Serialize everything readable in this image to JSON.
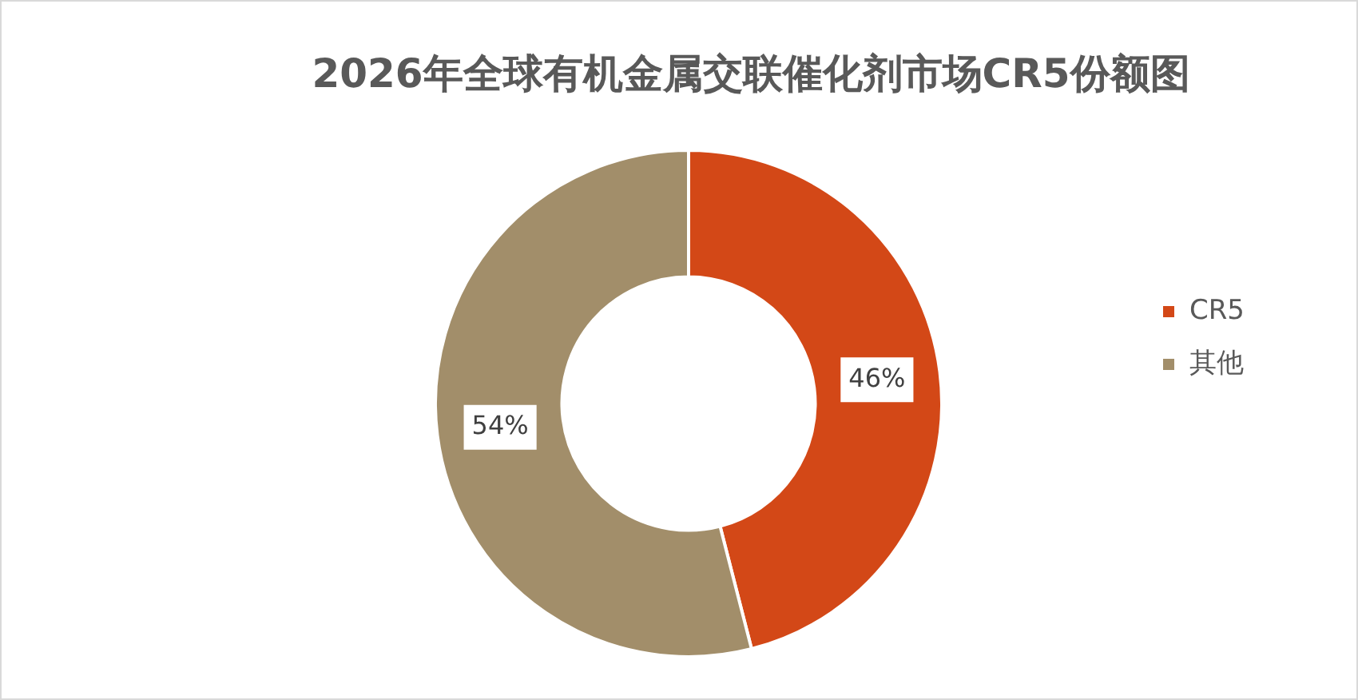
{
  "chart_data": {
    "type": "donut",
    "title": "2026年全球有机金属交联催化剂市场CR5份额图",
    "categories": [
      "CR5",
      "其他"
    ],
    "values": [
      46,
      54
    ],
    "colors": [
      "#d34817",
      "#a28e6a"
    ],
    "value_labels": [
      "46%",
      "54%"
    ],
    "legend": "right"
  }
}
